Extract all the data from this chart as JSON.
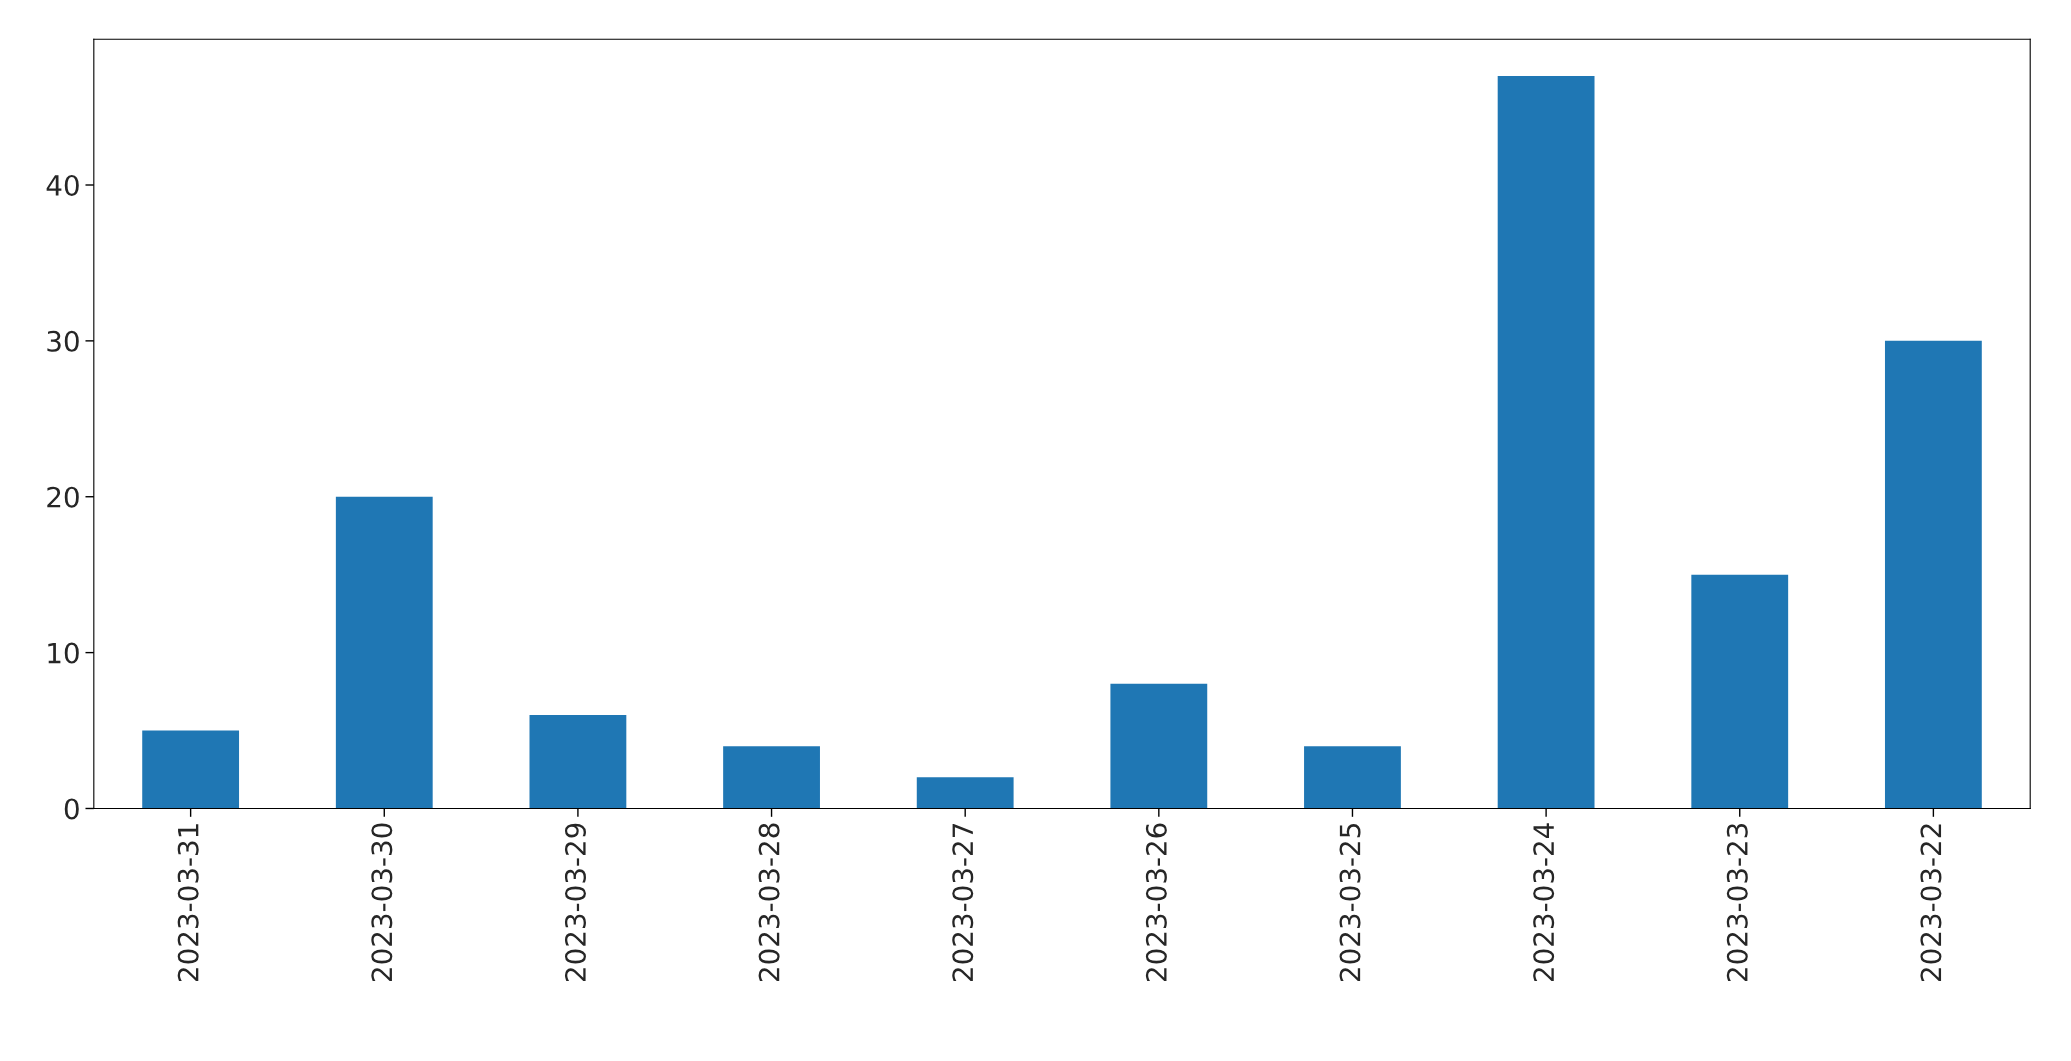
{
  "chart_data": {
    "type": "bar",
    "categories": [
      "2023-03-31",
      "2023-03-30",
      "2023-03-29",
      "2023-03-28",
      "2023-03-27",
      "2023-03-26",
      "2023-03-25",
      "2023-03-24",
      "2023-03-23",
      "2023-03-22"
    ],
    "values": [
      5,
      20,
      6,
      4,
      2,
      8,
      4,
      47,
      15,
      30
    ],
    "color": "#1f77b4",
    "ylim": [
      0,
      49.35
    ],
    "yticks": [
      0,
      10,
      20,
      30,
      40
    ],
    "grid": false,
    "legend": false
  }
}
